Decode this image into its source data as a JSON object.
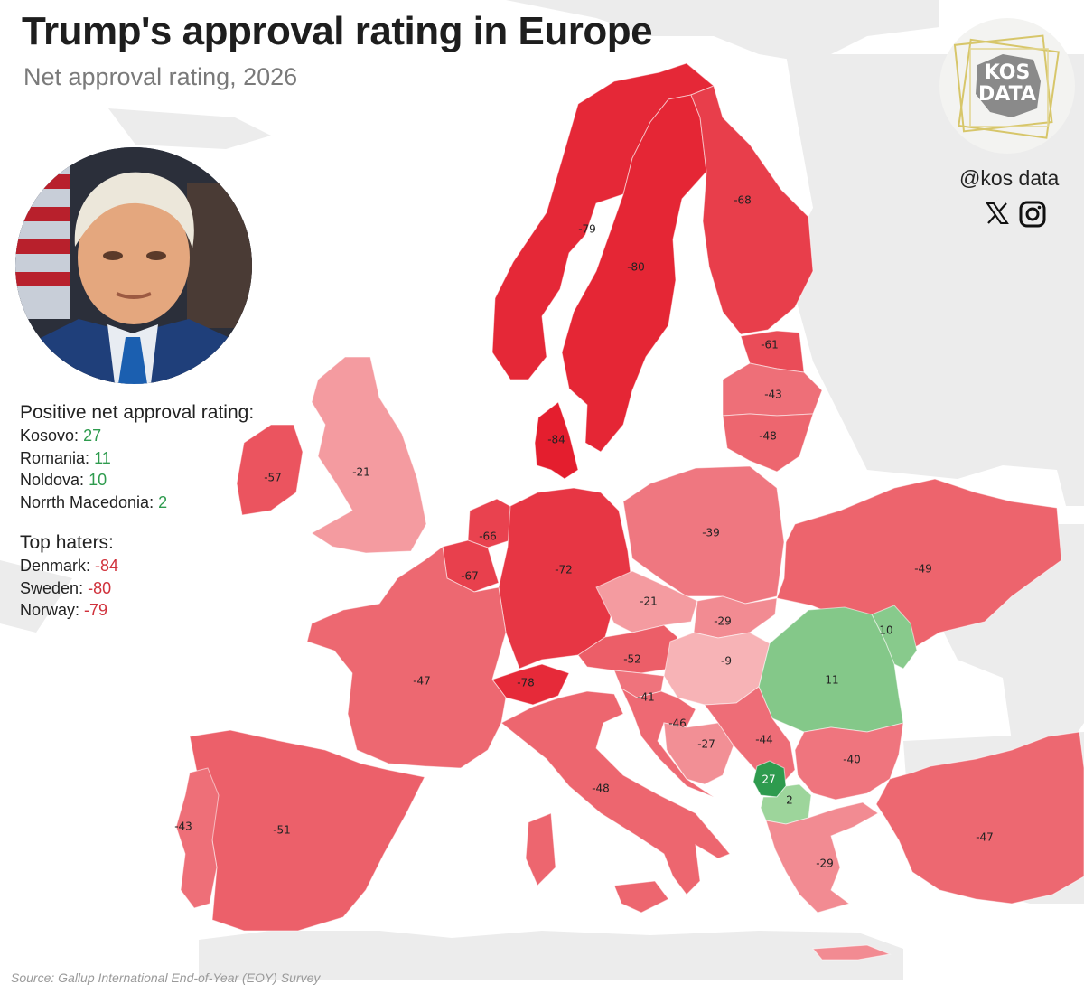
{
  "title": "Trump's approval rating in Europe",
  "subtitle": "Net approval rating, 2026",
  "source": "Source: Gallup International End-of-Year (EOY) Survey",
  "branding": {
    "logo_line1": "KOS",
    "logo_line2": "DATA",
    "handle": "@kos data",
    "icons": [
      "x-icon",
      "instagram-icon"
    ]
  },
  "legend": {
    "positive_heading": "Positive net approval rating:",
    "positive": [
      {
        "name": "Kosovo",
        "value": "27"
      },
      {
        "name": "Romania",
        "value": "11"
      },
      {
        "name": "Noldova",
        "value": "10"
      },
      {
        "name": "Norrth Macedonia",
        "value": "2"
      }
    ],
    "negative_heading": "Top haters:",
    "negative": [
      {
        "name": "Denmark",
        "value": "-84"
      },
      {
        "name": "Sweden",
        "value": "-80"
      },
      {
        "name": "Norway",
        "value": "-79"
      }
    ]
  },
  "colors": {
    "background_land": "#ececec",
    "sea": "#ffffff",
    "positive_strong": "#2e9b4e",
    "positive_light": "#9fd69c",
    "negative_strong": "#e41e2e",
    "negative_light": "#f7b3b6",
    "positive_text": "#2e9b4e",
    "negative_text": "#d0313b"
  },
  "countries": [
    {
      "id": "norway",
      "value": -79,
      "label": "-79"
    },
    {
      "id": "sweden",
      "value": -80,
      "label": "-80"
    },
    {
      "id": "finland",
      "value": -68,
      "label": "-68"
    },
    {
      "id": "estonia",
      "value": -61,
      "label": "-61"
    },
    {
      "id": "latvia",
      "value": -43,
      "label": "-43"
    },
    {
      "id": "lithuania",
      "value": -48,
      "label": "-48"
    },
    {
      "id": "denmark",
      "value": -84,
      "label": "-84"
    },
    {
      "id": "ireland",
      "value": -57,
      "label": "-57"
    },
    {
      "id": "uk",
      "value": -21,
      "label": "-21"
    },
    {
      "id": "netherlands",
      "value": -66,
      "label": "-66"
    },
    {
      "id": "belgium",
      "value": -67,
      "label": "-67"
    },
    {
      "id": "germany",
      "value": -72,
      "label": "-72"
    },
    {
      "id": "poland",
      "value": -39,
      "label": "-39"
    },
    {
      "id": "ukraine",
      "value": -49,
      "label": "-49"
    },
    {
      "id": "czechia",
      "value": -21,
      "label": "-21"
    },
    {
      "id": "slovakia",
      "value": -29,
      "label": "-29"
    },
    {
      "id": "austria",
      "value": -52,
      "label": "-52"
    },
    {
      "id": "hungary",
      "value": -9,
      "label": "-9"
    },
    {
      "id": "moldova",
      "value": 10,
      "label": "10"
    },
    {
      "id": "romania",
      "value": 11,
      "label": "11"
    },
    {
      "id": "switzerland",
      "value": -78,
      "label": "-78"
    },
    {
      "id": "france",
      "value": -47,
      "label": "-47"
    },
    {
      "id": "slovenia",
      "value": -41,
      "label": "-41"
    },
    {
      "id": "croatia",
      "value": -46,
      "label": "-46"
    },
    {
      "id": "bosnia",
      "value": -27,
      "label": "-27"
    },
    {
      "id": "serbia",
      "value": -44,
      "label": "-44"
    },
    {
      "id": "bulgaria",
      "value": -40,
      "label": "-40"
    },
    {
      "id": "kosovo",
      "value": 27,
      "label": "27"
    },
    {
      "id": "north_macedonia",
      "value": 2,
      "label": "2"
    },
    {
      "id": "italy",
      "value": -48,
      "label": "-48"
    },
    {
      "id": "spain",
      "value": -51,
      "label": "-51"
    },
    {
      "id": "portugal",
      "value": -43,
      "label": "-43"
    },
    {
      "id": "greece",
      "value": -29,
      "label": "-29"
    },
    {
      "id": "turkey",
      "value": -47,
      "label": "-47"
    }
  ]
}
